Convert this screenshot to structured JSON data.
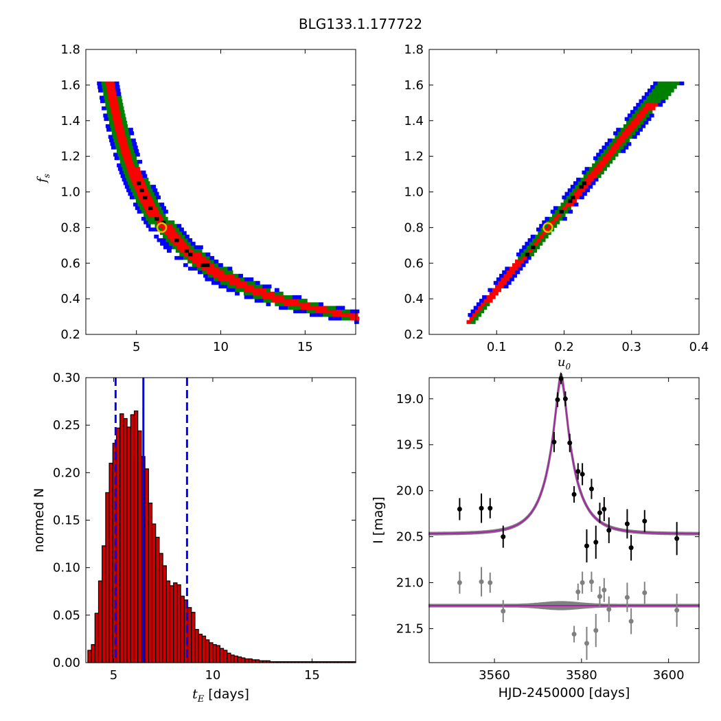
{
  "figure_title": "BLG133.1.177722",
  "chart_data": [
    {
      "id": "fs-vs-tE",
      "type": "heatmap",
      "xlim": [
        2.0,
        18.0
      ],
      "ylim": [
        0.2,
        1.8
      ],
      "xticks": [
        "5",
        "10",
        "15"
      ],
      "yticks": [
        "0.2",
        "0.4",
        "0.6",
        "0.8",
        "1.0",
        "1.2",
        "1.4",
        "1.6",
        "1.8"
      ],
      "xlabel": "",
      "ylabel": "f",
      "ylabel_sub": "s",
      "levels": [
        {
          "name": "outer",
          "color": "#0000ff"
        },
        {
          "name": "mid",
          "color": "#008000"
        },
        {
          "name": "inner",
          "color": "#ff0000"
        },
        {
          "name": "core",
          "color": "#000000"
        }
      ],
      "relation": "fs ≈ 5.2 / tE",
      "ridge_range": [
        3.8,
        17.2
      ],
      "best_fit": {
        "x": 6.5,
        "y": 0.8,
        "color": "#e5c000"
      }
    },
    {
      "id": "fs-vs-u0",
      "type": "heatmap",
      "xlim": [
        0.0,
        0.4
      ],
      "ylim": [
        0.2,
        1.8
      ],
      "xticks": [
        "0.1",
        "0.2",
        "0.3",
        "0.4"
      ],
      "yticks": [
        "0.2",
        "0.4",
        "0.6",
        "0.8",
        "1.0",
        "1.2",
        "1.4",
        "1.6",
        "1.8"
      ],
      "xlabel": "u",
      "xlabel_sub": "0",
      "ylabel": "",
      "relation": "fs ≈ 4.5 × u0",
      "ridge_range": [
        0.066,
        0.335
      ],
      "best_fit": {
        "x": 0.176,
        "y": 0.8,
        "color": "#e5c000"
      }
    },
    {
      "id": "tE-histogram",
      "type": "bar",
      "xlim": [
        3.6,
        17.2
      ],
      "ylim": [
        0.0,
        0.3
      ],
      "xticks": [
        "5",
        "10",
        "15"
      ],
      "yticks": [
        "0.00",
        "0.05",
        "0.10",
        "0.15",
        "0.20",
        "0.25",
        "0.30"
      ],
      "xlabel_math": "t",
      "xlabel_sub": "E",
      "xlabel_rest": " [days]",
      "ylabel": "normed N",
      "bar_color": "#cc0000",
      "bin_start": 3.7,
      "bin_width": 0.18,
      "values": [
        0.013,
        0.019,
        0.052,
        0.086,
        0.123,
        0.179,
        0.21,
        0.231,
        0.247,
        0.262,
        0.257,
        0.248,
        0.261,
        0.265,
        0.244,
        0.217,
        0.204,
        0.168,
        0.146,
        0.132,
        0.115,
        0.102,
        0.086,
        0.081,
        0.084,
        0.082,
        0.07,
        0.066,
        0.058,
        0.053,
        0.035,
        0.03,
        0.028,
        0.024,
        0.021,
        0.019,
        0.018,
        0.015,
        0.013,
        0.01,
        0.008,
        0.007,
        0.006,
        0.005,
        0.004,
        0.004,
        0.003,
        0.003,
        0.002,
        0.002,
        0.002,
        0.001,
        0.001,
        0.001,
        0.001,
        0.001,
        0.001,
        0.001,
        0.001,
        0.001,
        0.001,
        0.001,
        0.001,
        0.001,
        0.001,
        0.001,
        0.001,
        0.001,
        0.001,
        0.001,
        0.001,
        0.001,
        0.001,
        0.001,
        0.001
      ],
      "median": 6.5,
      "lower": 5.1,
      "upper": 8.7,
      "line_color": "#0000ff"
    },
    {
      "id": "lightcurve",
      "type": "scatter",
      "xlim": [
        3545,
        3607
      ],
      "ylim": [
        21.87,
        18.77
      ],
      "xticks": [
        "3560",
        "3580",
        "3600"
      ],
      "yticks": [
        "19.0",
        "19.5",
        "20.0",
        "20.5",
        "21.0",
        "21.5"
      ],
      "xlabel": "HJD-2450000 [days]",
      "ylabel": "I [mag]",
      "model": {
        "t0": 3575.3,
        "tE": 6.5,
        "u0": 0.176,
        "fs": 0.8,
        "baseline": 20.47,
        "color": "#aa22aa",
        "band_color": "#808080"
      },
      "residual_offset": 21.25,
      "series": [
        {
          "name": "",
          "color": "#000000",
          "points": [
            {
              "x": 3552,
              "y": 20.2,
              "err": 0.12
            },
            {
              "x": 3557,
              "y": 20.19,
              "err": 0.16
            },
            {
              "x": 3559,
              "y": 20.19,
              "err": 0.11
            },
            {
              "x": 3562,
              "y": 20.5,
              "err": 0.12
            },
            {
              "x": 3573.7,
              "y": 19.47,
              "err": 0.11
            },
            {
              "x": 3574.5,
              "y": 19.01,
              "err": 0.08
            },
            {
              "x": 3575.3,
              "y": 18.78,
              "err": 0.06
            },
            {
              "x": 3576.3,
              "y": 19.0,
              "err": 0.08
            },
            {
              "x": 3577.3,
              "y": 19.48,
              "err": 0.1
            },
            {
              "x": 3578.3,
              "y": 20.04,
              "err": 0.09
            },
            {
              "x": 3579.2,
              "y": 19.79,
              "err": 0.09
            },
            {
              "x": 3580.2,
              "y": 19.82,
              "err": 0.12
            },
            {
              "x": 3581.2,
              "y": 20.6,
              "err": 0.18
            },
            {
              "x": 3582.3,
              "y": 19.98,
              "err": 0.11
            },
            {
              "x": 3583.3,
              "y": 20.56,
              "err": 0.18
            },
            {
              "x": 3584.2,
              "y": 20.24,
              "err": 0.11
            },
            {
              "x": 3585.2,
              "y": 20.2,
              "err": 0.13
            },
            {
              "x": 3586.3,
              "y": 20.43,
              "err": 0.14
            },
            {
              "x": 3590.5,
              "y": 20.36,
              "err": 0.16
            },
            {
              "x": 3591.4,
              "y": 20.62,
              "err": 0.14
            },
            {
              "x": 3594.5,
              "y": 20.33,
              "err": 0.12
            },
            {
              "x": 3601.9,
              "y": 20.52,
              "err": 0.18
            }
          ]
        },
        {
          "name": "",
          "color": "#808080",
          "points": [
            {
              "x": 3552,
              "y": 21.0,
              "err": 0.12
            },
            {
              "x": 3557,
              "y": 20.99,
              "err": 0.16
            },
            {
              "x": 3559,
              "y": 21.0,
              "err": 0.11
            },
            {
              "x": 3562,
              "y": 21.31,
              "err": 0.12
            },
            {
              "x": 3578.3,
              "y": 21.56,
              "err": 0.09
            },
            {
              "x": 3579.2,
              "y": 21.1,
              "err": 0.09
            },
            {
              "x": 3580.2,
              "y": 21.0,
              "err": 0.12
            },
            {
              "x": 3581.2,
              "y": 21.66,
              "err": 0.18
            },
            {
              "x": 3582.3,
              "y": 20.99,
              "err": 0.11
            },
            {
              "x": 3583.3,
              "y": 21.52,
              "err": 0.18
            },
            {
              "x": 3584.2,
              "y": 21.15,
              "err": 0.11
            },
            {
              "x": 3585.2,
              "y": 21.08,
              "err": 0.13
            },
            {
              "x": 3586.3,
              "y": 21.29,
              "err": 0.14
            },
            {
              "x": 3590.5,
              "y": 21.16,
              "err": 0.16
            },
            {
              "x": 3591.4,
              "y": 21.42,
              "err": 0.14
            },
            {
              "x": 3594.5,
              "y": 21.11,
              "err": 0.12
            },
            {
              "x": 3601.9,
              "y": 21.3,
              "err": 0.18
            }
          ]
        }
      ]
    }
  ]
}
